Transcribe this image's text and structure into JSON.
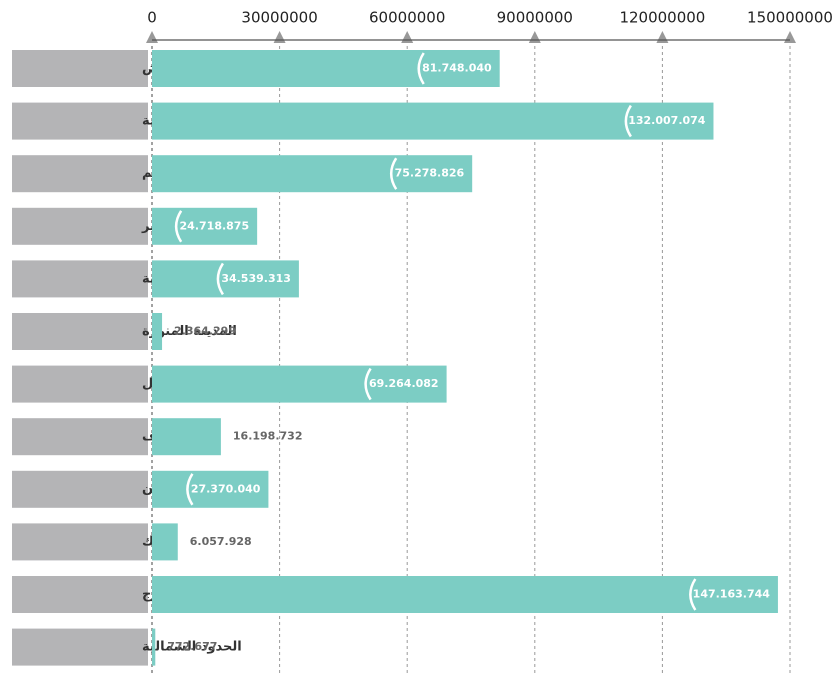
{
  "chart_data": {
    "type": "bar",
    "orientation": "horizontal",
    "categories": [
      "الرياض",
      "مكة المكرمة",
      "القصيم",
      "عسير",
      "المنطقة الشرقية",
      "المدينة المنورة",
      "حائل",
      "الجوف",
      "جازان",
      "تبوك",
      "الخرج",
      "الحدود الشمالية"
    ],
    "values": [
      81748040,
      132007074,
      75278826,
      24718875,
      34539313,
      2364299,
      69264082,
      16198732,
      27370040,
      6057928,
      147163744,
      772677
    ],
    "value_labels": [
      "81.748.040",
      "132.007.074",
      "75.278.826",
      "24.718.875",
      "34.539.313",
      "2.364.299",
      "69.264.082",
      "16.198.732",
      "27.370.040",
      "6.057.928",
      "147.163.744",
      "772.677"
    ],
    "color": "#7ccdc4",
    "xlim": [
      0,
      150000000
    ],
    "xticks": [
      0,
      30000000,
      60000000,
      90000000,
      120000000,
      150000000
    ],
    "grid": true
  }
}
